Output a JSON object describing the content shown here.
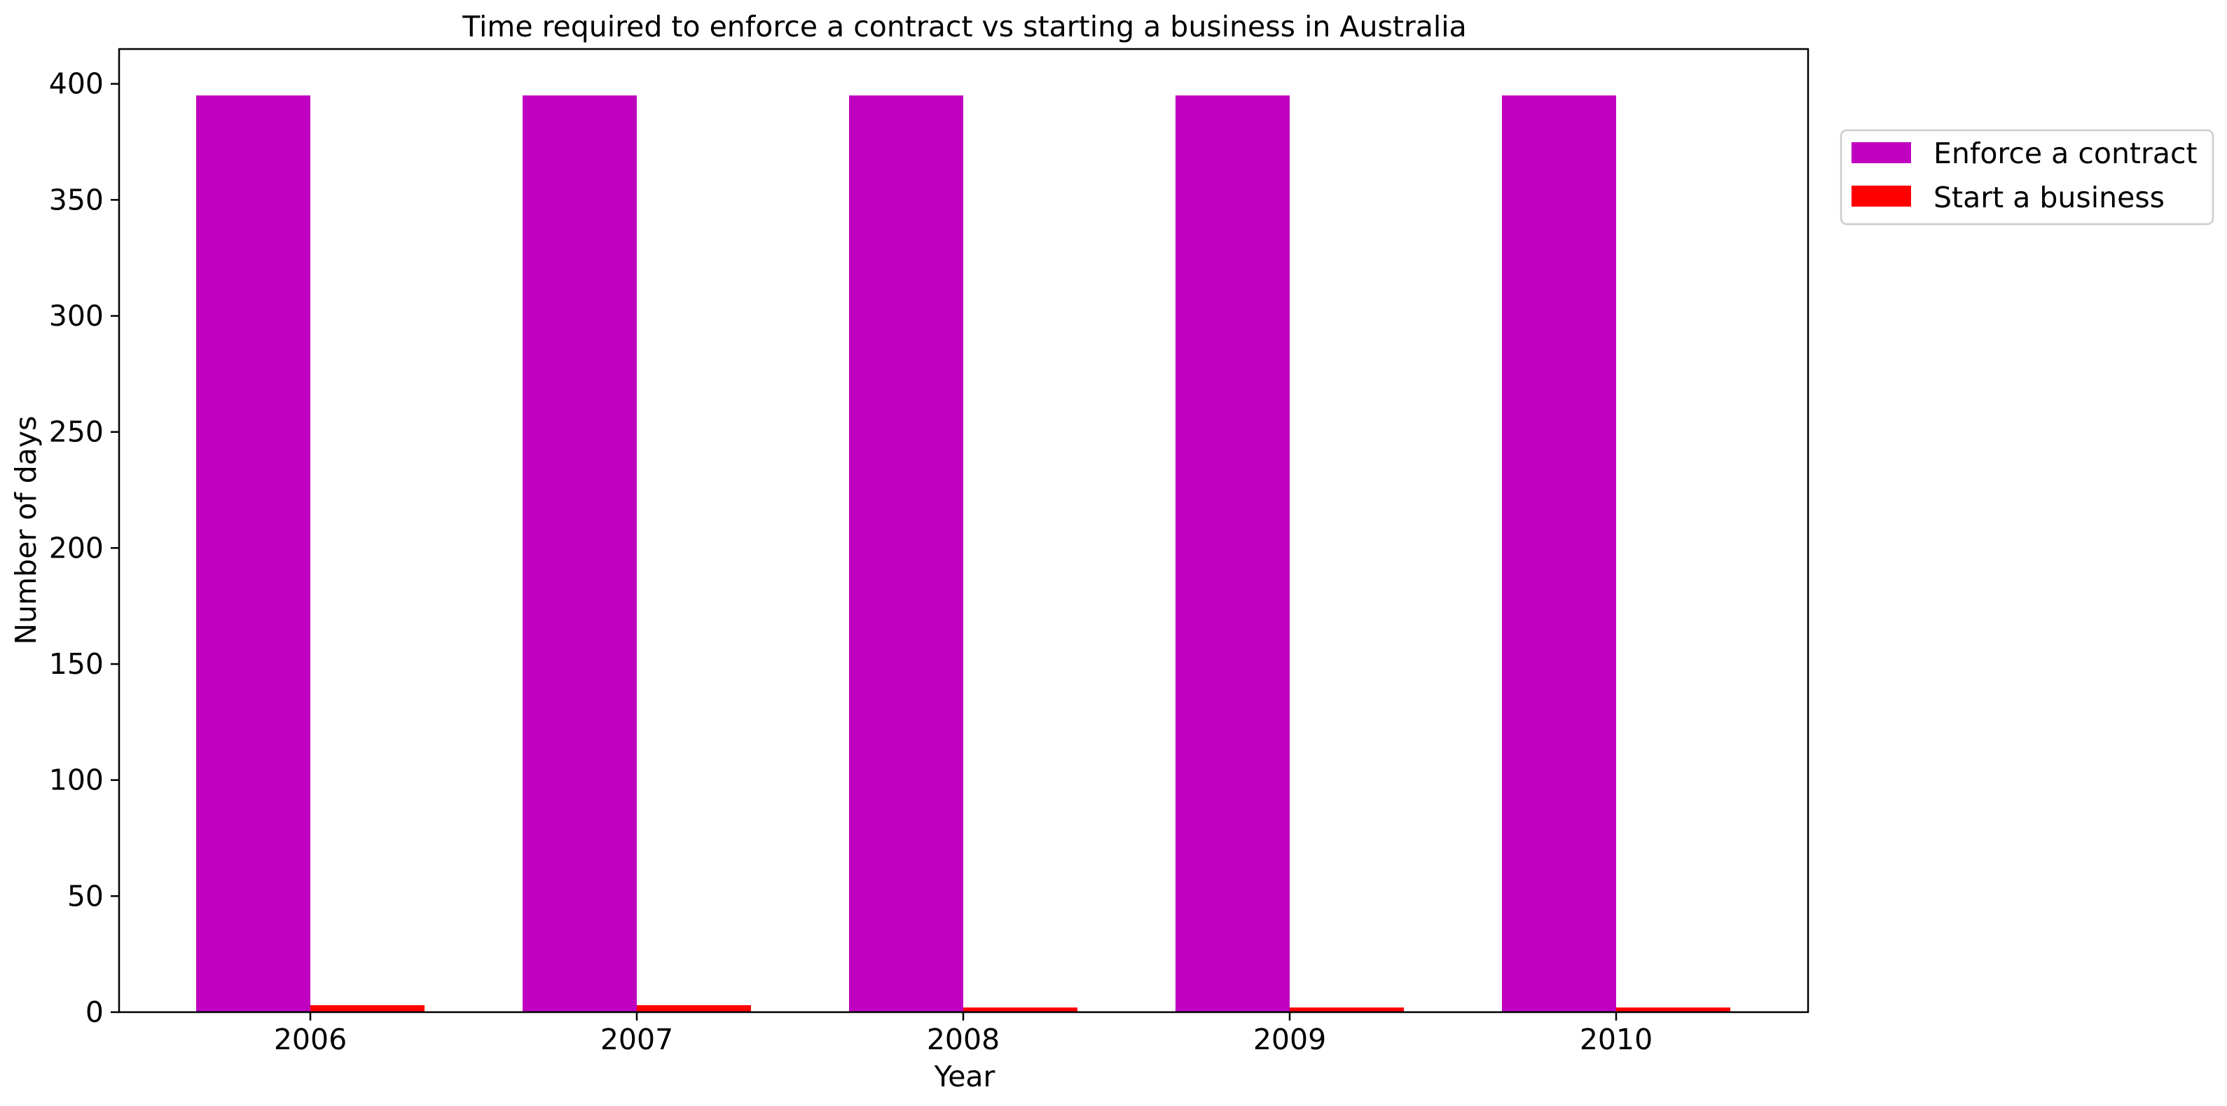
{
  "chart_data": {
    "type": "bar",
    "title": "Time required to enforce a contract vs starting a business in Australia",
    "xlabel": "Year",
    "ylabel": "Number of days",
    "categories": [
      "2006",
      "2007",
      "2008",
      "2009",
      "2010"
    ],
    "series": [
      {
        "name": "Enforce a contract",
        "color": "#bf00bf",
        "values": [
          395,
          395,
          395,
          395,
          395
        ]
      },
      {
        "name": "Start a business",
        "color": "#ff0000",
        "values": [
          3,
          3,
          2,
          2,
          2
        ]
      }
    ],
    "ylim": [
      0,
      415
    ],
    "yticks": [
      0,
      50,
      100,
      150,
      200,
      250,
      300,
      350,
      400
    ],
    "grid": false,
    "legend_position": "right, outside plot"
  }
}
